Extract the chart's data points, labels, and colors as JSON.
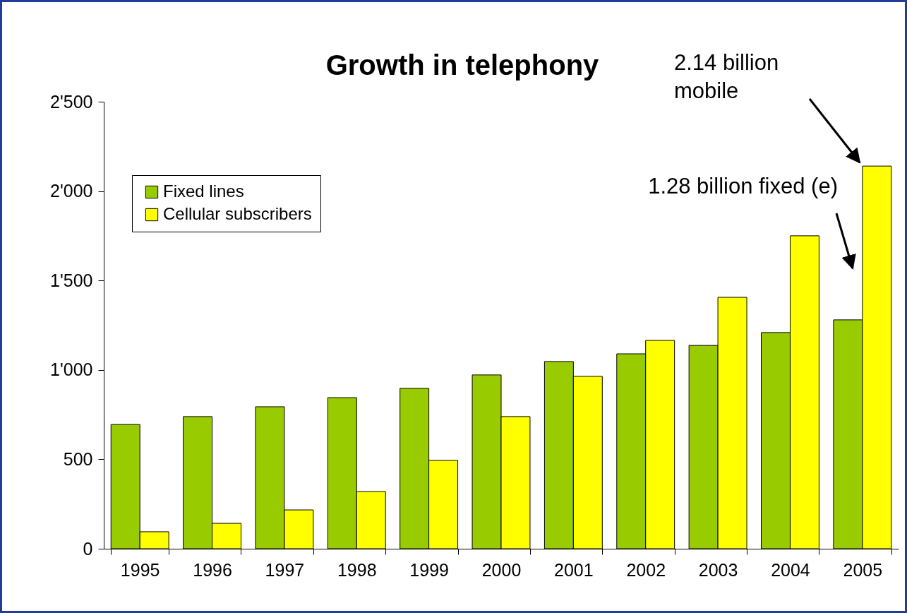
{
  "chart_data": {
    "type": "bar",
    "title": "Growth in telephony",
    "categories": [
      "1995",
      "1996",
      "1997",
      "1998",
      "1999",
      "2000",
      "2001",
      "2002",
      "2003",
      "2004",
      "2005"
    ],
    "series": [
      {
        "name": "Fixed lines",
        "color": "#99cc00",
        "values": [
          695,
          739,
          794,
          845,
          897,
          972,
          1047,
          1090,
          1137,
          1209,
          1280
        ]
      },
      {
        "name": "Cellular subscribers",
        "color": "#ffff00",
        "values": [
          95,
          142,
          217,
          320,
          494,
          739,
          964,
          1165,
          1406,
          1750,
          2140
        ]
      }
    ],
    "ylim": [
      0,
      2500
    ],
    "yticks": [
      0,
      500,
      {
        "value": 1000,
        "label": "1'000"
      },
      {
        "value": 1500,
        "label": "1'500"
      },
      {
        "value": 2000,
        "label": "2'000"
      },
      {
        "value": 2500,
        "label": "2'500"
      }
    ],
    "annotations": [
      "2.14 billion\nmobile",
      "1.28 billion fixed (e)"
    ],
    "grid": false,
    "legend": "top left"
  }
}
